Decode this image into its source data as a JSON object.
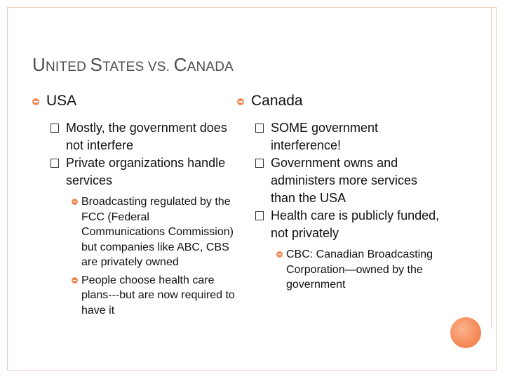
{
  "slide": {
    "title_parts": [
      {
        "text": "U",
        "size": "big"
      },
      {
        "text": "NITED ",
        "size": "small"
      },
      {
        "text": "S",
        "size": "big"
      },
      {
        "text": "TATES VS. ",
        "size": "small"
      },
      {
        "text": "C",
        "size": "big"
      },
      {
        "text": "ANADA",
        "size": "small"
      }
    ],
    "left": {
      "heading": "USA",
      "items": [
        "Mostly, the government does not interfere",
        "Private organizations handle services"
      ],
      "subitems": [
        "Broadcasting regulated by the FCC (Federal Communications Commission) but companies like ABC, CBS are privately owned",
        "People choose health care plans---but are now required to have it"
      ]
    },
    "right": {
      "heading": "Canada",
      "items": [
        "SOME government interference!",
        "Government owns and administers more services than the USA",
        "Health care is publicly funded, not privately"
      ],
      "subitems": [
        "CBC: Canadian Broadcasting Corporation—owned by the government"
      ]
    }
  },
  "colors": {
    "accent": "#f08a5a",
    "frame": "#f2c9b6",
    "title": "#4d4d4d"
  }
}
